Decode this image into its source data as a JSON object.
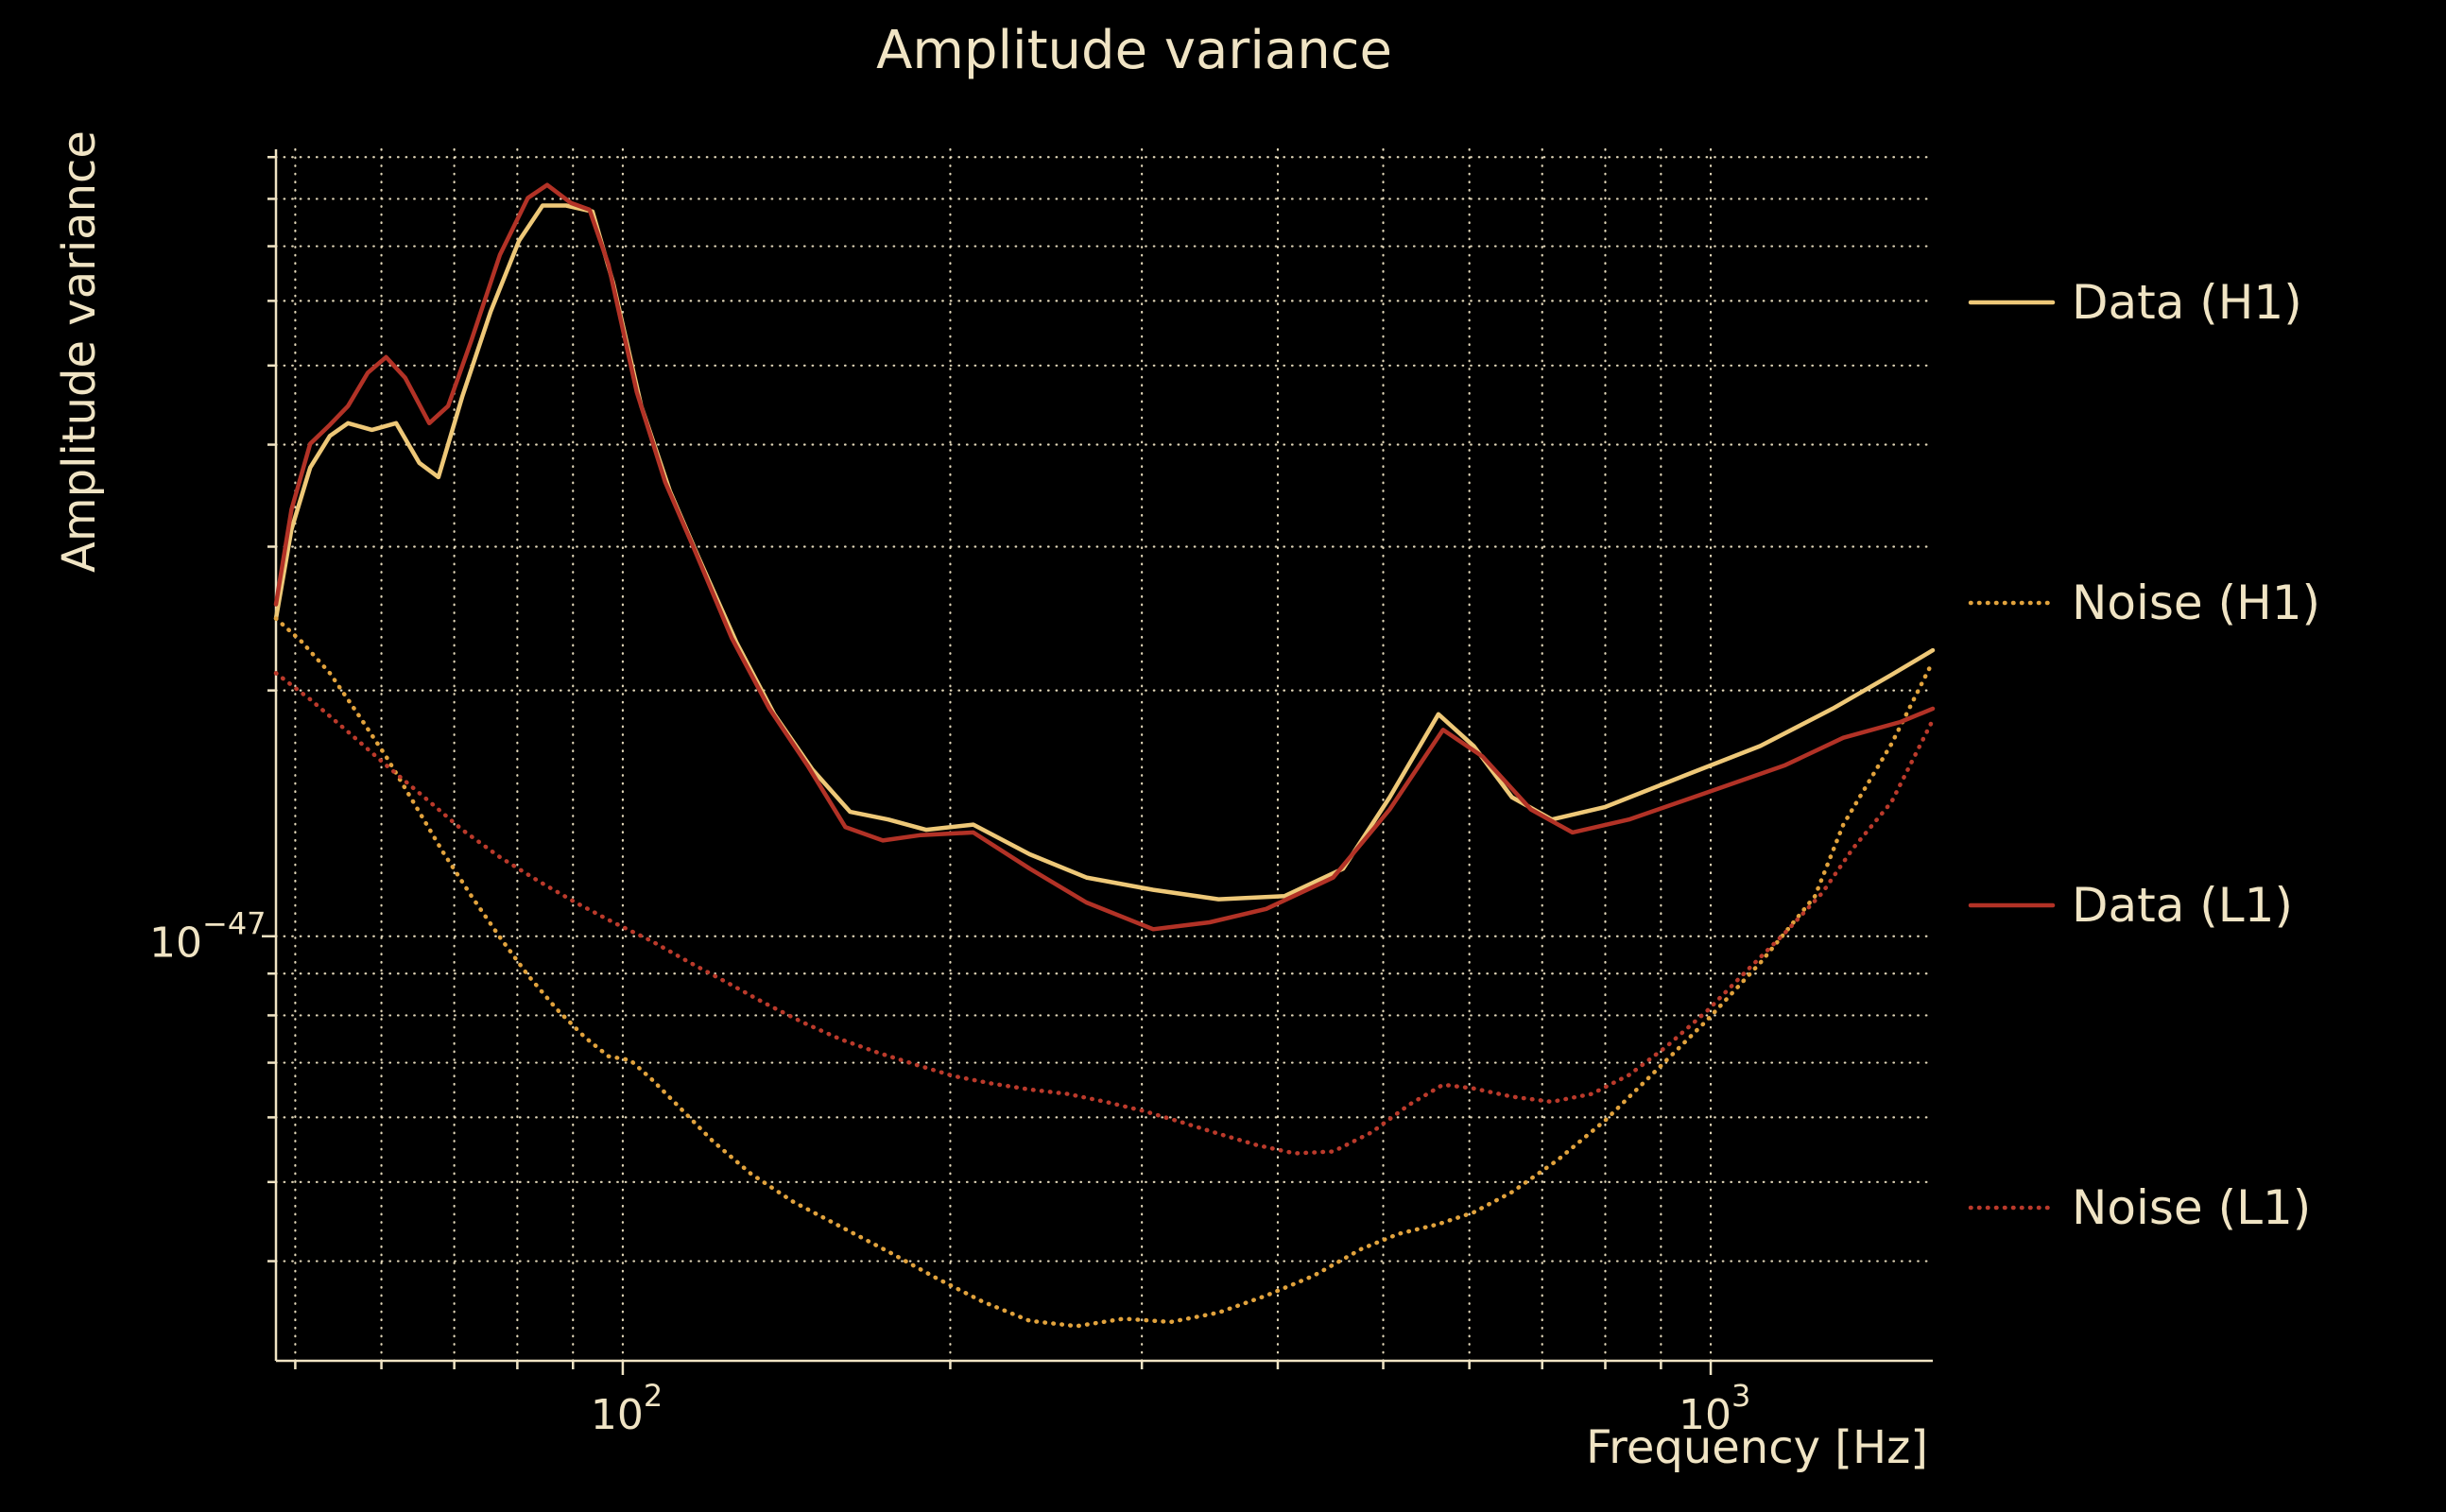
{
  "figure": {
    "background": "#000000",
    "text_color": "#f0e4c4",
    "grid_color": "#efe3c3"
  },
  "chart_data": {
    "type": "line",
    "title": "Amplitude variance",
    "xlabel": "Frequency [Hz]",
    "ylabel": "Amplitude variance",
    "x_scale": "log",
    "y_scale": "log",
    "xlim": [
      48,
      1600
    ],
    "ylim": [
      3.02e-48,
      9.2e-47
    ],
    "grid": true,
    "legend_position": "right-outside",
    "x_major_ticks": [
      100,
      1000
    ],
    "x_major_tick_labels": [
      {
        "base": "10",
        "exp": "2"
      },
      {
        "base": "10",
        "exp": "3"
      }
    ],
    "x_minor_ticks": [
      50,
      60,
      70,
      80,
      90,
      200,
      300,
      400,
      500,
      600,
      700,
      800,
      900
    ],
    "y_major_ticks": [
      1e-47
    ],
    "y_major_tick_labels": [
      {
        "base": "10",
        "exp": "−47"
      }
    ],
    "y_minor_ticks": [
      9e-47,
      8e-47,
      7e-47,
      6e-47,
      5e-47,
      4e-47,
      3e-47,
      2e-47,
      9e-48,
      8e-48,
      7e-48,
      6e-48,
      5e-48,
      4e-48
    ],
    "series": [
      {
        "name": "Data (H1)",
        "style": "solid",
        "color": "#eec878",
        "points": [
          [
            48,
            2.45e-47
          ],
          [
            49.6,
            3.15e-47
          ],
          [
            51.6,
            3.75e-47
          ],
          [
            53.8,
            4.1e-47
          ],
          [
            55.9,
            4.25e-47
          ],
          [
            58.8,
            4.17e-47
          ],
          [
            61.9,
            4.25e-47
          ],
          [
            65,
            3.8e-47
          ],
          [
            67.7,
            3.65e-47
          ],
          [
            71.2,
            4.58e-47
          ],
          [
            75.6,
            5.82e-47
          ],
          [
            80.3,
            7.11e-47
          ],
          [
            84.4,
            7.85e-47
          ],
          [
            88.7,
            7.85e-47
          ],
          [
            93.8,
            7.72e-47
          ],
          [
            98,
            6.31e-47
          ],
          [
            104,
            4.46e-47
          ],
          [
            110.5,
            3.51e-47
          ],
          [
            117.4,
            2.91e-47
          ],
          [
            127.2,
            2.29e-47
          ],
          [
            137.8,
            1.87e-47
          ],
          [
            149.4,
            1.6e-47
          ],
          [
            161.8,
            1.42e-47
          ],
          [
            175.4,
            1.39e-47
          ],
          [
            190,
            1.35e-47
          ],
          [
            210,
            1.37e-47
          ],
          [
            236.6,
            1.26e-47
          ],
          [
            266.8,
            1.18e-47
          ],
          [
            307.3,
            1.14e-47
          ],
          [
            352.9,
            1.11e-47
          ],
          [
            405.9,
            1.12e-47
          ],
          [
            459.3,
            1.21e-47
          ],
          [
            506.9,
            1.48e-47
          ],
          [
            561.9,
            1.87e-47
          ],
          [
            605.5,
            1.71e-47
          ],
          [
            656.6,
            1.48e-47
          ],
          [
            714.4,
            1.39e-47
          ],
          [
            800.1,
            1.44e-47
          ],
          [
            953.9,
            1.58e-47
          ],
          [
            1110.6,
            1.71e-47
          ],
          [
            1294.2,
            1.9e-47
          ],
          [
            1466.1,
            2.09e-47
          ],
          [
            1600,
            2.24e-47
          ]
        ]
      },
      {
        "name": "Noise (H1)",
        "style": "dotted",
        "color": "#e2a33d",
        "points": [
          [
            48,
            2.45e-47
          ],
          [
            50.6,
            2.3e-47
          ],
          [
            53.8,
            2.1e-47
          ],
          [
            57.1,
            1.87e-47
          ],
          [
            60.6,
            1.66e-47
          ],
          [
            64.4,
            1.45e-47
          ],
          [
            68.3,
            1.27e-47
          ],
          [
            72.6,
            1.12e-47
          ],
          [
            77.1,
            9.97e-48
          ],
          [
            81.8,
            8.96e-48
          ],
          [
            86.9,
            8.15e-48
          ],
          [
            92.3,
            7.52e-48
          ],
          [
            97,
            7.13e-48
          ],
          [
            101.6,
            7.05e-48
          ],
          [
            106.2,
            6.69e-48
          ],
          [
            112.8,
            6.17e-48
          ],
          [
            121,
            5.61e-48
          ],
          [
            131.1,
            5.12e-48
          ],
          [
            143.4,
            4.73e-48
          ],
          [
            158.5,
            4.41e-48
          ],
          [
            175.4,
            4.11e-48
          ],
          [
            193.7,
            3.82e-48
          ],
          [
            214,
            3.57e-48
          ],
          [
            236.6,
            3.38e-48
          ],
          [
            261.3,
            3.33e-48
          ],
          [
            288.6,
            3.4e-48
          ],
          [
            318.9,
            3.37e-48
          ],
          [
            352.9,
            3.46e-48
          ],
          [
            390.3,
            3.63e-48
          ],
          [
            431.7,
            3.84e-48
          ],
          [
            477.5,
            4.14e-48
          ],
          [
            516.4,
            4.32e-48
          ],
          [
            561.9,
            4.44e-48
          ],
          [
            605.5,
            4.59e-48
          ],
          [
            656.6,
            4.86e-48
          ],
          [
            723.3,
            5.32e-48
          ],
          [
            800.1,
            5.95e-48
          ],
          [
            885.1,
            6.79e-48
          ],
          [
            992.2,
            7.89e-48
          ],
          [
            1112.3,
            9.3e-48
          ],
          [
            1247,
            1.12e-47
          ],
          [
            1323.9,
            1.37e-47
          ],
          [
            1466.1,
            1.72e-47
          ],
          [
            1600,
            2.17e-47
          ]
        ]
      },
      {
        "name": "Data (L1)",
        "style": "solid",
        "color": "#b23226",
        "points": [
          [
            48,
            2.55e-47
          ],
          [
            49.6,
            3.33e-47
          ],
          [
            51.6,
            4.01e-47
          ],
          [
            53.8,
            4.23e-47
          ],
          [
            55.9,
            4.46e-47
          ],
          [
            58.3,
            4.9e-47
          ],
          [
            60.6,
            5.12e-47
          ],
          [
            63.1,
            4.83e-47
          ],
          [
            66.4,
            4.25e-47
          ],
          [
            69.1,
            4.46e-47
          ],
          [
            72.6,
            5.37e-47
          ],
          [
            77.1,
            6.83e-47
          ],
          [
            81.8,
            8.02e-47
          ],
          [
            85.2,
            8.32e-47
          ],
          [
            89.6,
            7.91e-47
          ],
          [
            93.2,
            7.76e-47
          ],
          [
            97,
            6.65e-47
          ],
          [
            103,
            4.64e-47
          ],
          [
            109.4,
            3.6e-47
          ],
          [
            116.2,
            2.99e-47
          ],
          [
            125.9,
            2.32e-47
          ],
          [
            136.4,
            1.9e-47
          ],
          [
            147.8,
            1.62e-47
          ],
          [
            160.2,
            1.36e-47
          ],
          [
            173.4,
            1.31e-47
          ],
          [
            187.9,
            1.33e-47
          ],
          [
            210,
            1.34e-47
          ],
          [
            236.6,
            1.21e-47
          ],
          [
            266.8,
            1.1e-47
          ],
          [
            307.3,
            1.02e-47
          ],
          [
            346.2,
            1.04e-47
          ],
          [
            390.3,
            1.08e-47
          ],
          [
            449.8,
            1.18e-47
          ],
          [
            506.9,
            1.43e-47
          ],
          [
            567.5,
            1.79e-47
          ],
          [
            617,
            1.66e-47
          ],
          [
            683.4,
            1.43e-47
          ],
          [
            746.2,
            1.34e-47
          ],
          [
            841,
            1.39e-47
          ],
          [
            992.2,
            1.5e-47
          ],
          [
            1170.6,
            1.62e-47
          ],
          [
            1323.9,
            1.75e-47
          ],
          [
            1494.2,
            1.83e-47
          ],
          [
            1600,
            1.9e-47
          ]
        ]
      },
      {
        "name": "Noise (L1)",
        "style": "dotted",
        "color": "#bb3a2b",
        "points": [
          [
            48,
            2.1e-47
          ],
          [
            51.6,
            1.95e-47
          ],
          [
            55.9,
            1.78e-47
          ],
          [
            60.6,
            1.62e-47
          ],
          [
            65.7,
            1.48e-47
          ],
          [
            71.2,
            1.35e-47
          ],
          [
            77.1,
            1.25e-47
          ],
          [
            83.5,
            1.17e-47
          ],
          [
            90.5,
            1.1e-47
          ],
          [
            98,
            1.04e-47
          ],
          [
            106.2,
            9.87e-48
          ],
          [
            115,
            9.3e-48
          ],
          [
            124.6,
            8.78e-48
          ],
          [
            135,
            8.28e-48
          ],
          [
            146.2,
            7.85e-48
          ],
          [
            158.5,
            7.48e-48
          ],
          [
            171.7,
            7.2e-48
          ],
          [
            186,
            6.96e-48
          ],
          [
            201.6,
            6.74e-48
          ],
          [
            218.4,
            6.6e-48
          ],
          [
            236.6,
            6.49e-48
          ],
          [
            256.4,
            6.41e-48
          ],
          [
            277.8,
            6.27e-48
          ],
          [
            301,
            6.11e-48
          ],
          [
            326.1,
            5.92e-48
          ],
          [
            352.9,
            5.73e-48
          ],
          [
            382.6,
            5.55e-48
          ],
          [
            414.6,
            5.42e-48
          ],
          [
            449.8,
            5.45e-48
          ],
          [
            487.6,
            5.75e-48
          ],
          [
            528.4,
            6.22e-48
          ],
          [
            567.5,
            6.58e-48
          ],
          [
            605.5,
            6.51e-48
          ],
          [
            656.6,
            6.36e-48
          ],
          [
            714.4,
            6.27e-48
          ],
          [
            777.3,
            6.41e-48
          ],
          [
            841,
            6.76e-48
          ],
          [
            909.9,
            7.32e-48
          ],
          [
            992.2,
            8.1e-48
          ],
          [
            1073.8,
            9.01e-48
          ],
          [
            1170.6,
            1.01e-47
          ],
          [
            1266.1,
            1.13e-47
          ],
          [
            1350.6,
            1.28e-47
          ],
          [
            1466.1,
            1.46e-47
          ],
          [
            1600,
            1.84e-47
          ]
        ]
      }
    ]
  },
  "legend": {
    "items": [
      {
        "label": "Data (H1)"
      },
      {
        "label": "Noise (H1)"
      },
      {
        "label": "Data (L1)"
      },
      {
        "label": "Noise (L1)"
      }
    ]
  }
}
